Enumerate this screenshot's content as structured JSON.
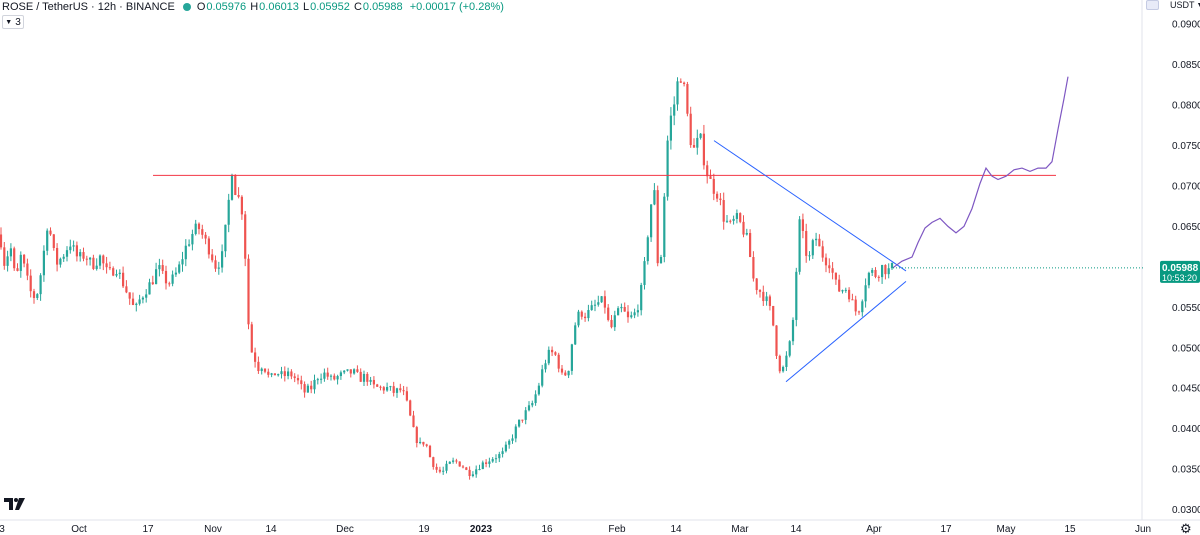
{
  "legend": {
    "symbol": "ROSE / TetherUS · 12h · BINANCE",
    "open_label": "O",
    "open": "0.05976",
    "high_label": "H",
    "high": "0.06013",
    "low_label": "L",
    "low": "0.05952",
    "close_label": "C",
    "close": "0.05988",
    "change": "+0.00017 (+0.28%)"
  },
  "indicators_button": {
    "count": "3"
  },
  "currency": "USDT",
  "price_badge": {
    "price": "0.05988",
    "countdown": "10:53:20",
    "color": "#089981"
  },
  "colors": {
    "up": "#26a69a",
    "down": "#ef5350",
    "resistance": "#f23645",
    "trend": "#2962ff",
    "projection": "#7e57c2",
    "axis_text": "#131722"
  },
  "chart_data": {
    "type": "candlestick",
    "symbol": "ROSE/USDT",
    "interval": "12h",
    "exchange": "BINANCE",
    "y_axis": {
      "ticks": [
        "0.09000",
        "0.08500",
        "0.08000",
        "0.07500",
        "0.07000",
        "0.06500",
        "0.06000",
        "0.05500",
        "0.05000",
        "0.04500",
        "0.04000",
        "0.03500",
        "0.03000"
      ],
      "ylim": [
        0.0297,
        0.0915
      ]
    },
    "x_axis": {
      "ticks": [
        "3",
        "Oct",
        "17",
        "Nov",
        "14",
        "Dec",
        "19",
        "2023",
        "16",
        "Feb",
        "14",
        "Mar",
        "14",
        "Apr",
        "17",
        "May",
        "15",
        "Jun"
      ],
      "bold": [
        "2023"
      ]
    },
    "series_path": [
      [
        0,
        0.064
      ],
      [
        5,
        0.06
      ],
      [
        10,
        0.063
      ],
      [
        16,
        0.0578
      ],
      [
        20,
        0.0615
      ],
      [
        24,
        0.06
      ],
      [
        30,
        0.057
      ],
      [
        36,
        0.056
      ],
      [
        42,
        0.06
      ],
      [
        48,
        0.066
      ],
      [
        53,
        0.062
      ],
      [
        57,
        0.0605
      ],
      [
        62,
        0.0612
      ],
      [
        70,
        0.063
      ],
      [
        78,
        0.061
      ],
      [
        85,
        0.0615
      ],
      [
        92,
        0.0602
      ],
      [
        100,
        0.0612
      ],
      [
        108,
        0.059
      ],
      [
        116,
        0.06
      ],
      [
        123,
        0.058
      ],
      [
        130,
        0.056
      ],
      [
        135,
        0.0545
      ],
      [
        140,
        0.056
      ],
      [
        146,
        0.0572
      ],
      [
        152,
        0.0582
      ],
      [
        158,
        0.06
      ],
      [
        164,
        0.0585
      ],
      [
        170,
        0.058
      ],
      [
        178,
        0.0595
      ],
      [
        185,
        0.0622
      ],
      [
        192,
        0.064
      ],
      [
        198,
        0.065
      ],
      [
        204,
        0.0635
      ],
      [
        210,
        0.062
      ],
      [
        216,
        0.06
      ],
      [
        222,
        0.0612
      ],
      [
        227,
        0.066
      ],
      [
        232,
        0.0722
      ],
      [
        236,
        0.069
      ],
      [
        241,
        0.068
      ],
      [
        244,
        0.065
      ],
      [
        247,
        0.056
      ],
      [
        250,
        0.05
      ],
      [
        254,
        0.049
      ],
      [
        258,
        0.0475
      ],
      [
        263,
        0.048
      ],
      [
        270,
        0.046
      ],
      [
        276,
        0.047
      ],
      [
        283,
        0.0465
      ],
      [
        290,
        0.0468
      ],
      [
        297,
        0.046
      ],
      [
        304,
        0.0445
      ],
      [
        311,
        0.045
      ],
      [
        318,
        0.0465
      ],
      [
        325,
        0.0468
      ],
      [
        332,
        0.046
      ],
      [
        339,
        0.0465
      ],
      [
        346,
        0.0468
      ],
      [
        353,
        0.047
      ],
      [
        360,
        0.0462
      ],
      [
        366,
        0.0465
      ],
      [
        372,
        0.0452
      ],
      [
        380,
        0.045
      ],
      [
        388,
        0.045
      ],
      [
        394,
        0.0445
      ],
      [
        400,
        0.0448
      ],
      [
        405,
        0.044
      ],
      [
        410,
        0.0415
      ],
      [
        415,
        0.039
      ],
      [
        420,
        0.038
      ],
      [
        425,
        0.0385
      ],
      [
        430,
        0.0365
      ],
      [
        436,
        0.035
      ],
      [
        442,
        0.0345
      ],
      [
        448,
        0.0355
      ],
      [
        455,
        0.036
      ],
      [
        462,
        0.0355
      ],
      [
        468,
        0.0345
      ],
      [
        474,
        0.0348
      ],
      [
        480,
        0.0355
      ],
      [
        487,
        0.036
      ],
      [
        494,
        0.0365
      ],
      [
        502,
        0.0368
      ],
      [
        508,
        0.038
      ],
      [
        514,
        0.0395
      ],
      [
        520,
        0.041
      ],
      [
        526,
        0.042
      ],
      [
        532,
        0.043
      ],
      [
        538,
        0.045
      ],
      [
        544,
        0.048
      ],
      [
        550,
        0.0495
      ],
      [
        556,
        0.049
      ],
      [
        562,
        0.0465
      ],
      [
        568,
        0.047
      ],
      [
        574,
        0.0525
      ],
      [
        580,
        0.0545
      ],
      [
        586,
        0.054
      ],
      [
        592,
        0.0548
      ],
      [
        598,
        0.0555
      ],
      [
        604,
        0.0558
      ],
      [
        610,
        0.052
      ],
      [
        616,
        0.054
      ],
      [
        622,
        0.0548
      ],
      [
        628,
        0.0535
      ],
      [
        634,
        0.054
      ],
      [
        640,
        0.056
      ],
      [
        645,
        0.0605
      ],
      [
        650,
        0.067
      ],
      [
        654,
        0.07
      ],
      [
        658,
        0.06
      ],
      [
        662,
        0.062
      ],
      [
        666,
        0.074
      ],
      [
        670,
        0.078
      ],
      [
        674,
        0.08
      ],
      [
        678,
        0.083
      ],
      [
        682,
        0.084
      ],
      [
        686,
        0.08
      ],
      [
        690,
        0.076
      ],
      [
        694,
        0.0745
      ],
      [
        700,
        0.076
      ],
      [
        706,
        0.072
      ],
      [
        712,
        0.07
      ],
      [
        718,
        0.069
      ],
      [
        724,
        0.066
      ],
      [
        730,
        0.065
      ],
      [
        736,
        0.066
      ],
      [
        742,
        0.065
      ],
      [
        748,
        0.063
      ],
      [
        754,
        0.058
      ],
      [
        760,
        0.057
      ],
      [
        766,
        0.056
      ],
      [
        772,
        0.054
      ],
      [
        778,
        0.048
      ],
      [
        782,
        0.047
      ],
      [
        787,
        0.049
      ],
      [
        792,
        0.0515
      ],
      [
        796,
        0.059
      ],
      [
        800,
        0.066
      ],
      [
        805,
        0.062
      ],
      [
        810,
        0.061
      ],
      [
        815,
        0.064
      ],
      [
        820,
        0.062
      ],
      [
        825,
        0.061
      ],
      [
        830,
        0.0605
      ],
      [
        835,
        0.058
      ],
      [
        840,
        0.057
      ],
      [
        845,
        0.0575
      ],
      [
        850,
        0.0565
      ],
      [
        855,
        0.0545
      ],
      [
        860,
        0.055
      ],
      [
        865,
        0.058
      ],
      [
        870,
        0.0595
      ],
      [
        876,
        0.059
      ],
      [
        882,
        0.06
      ],
      [
        888,
        0.0595
      ],
      [
        893,
        0.0599
      ]
    ],
    "resistance_line": {
      "x_from": 153,
      "x_to": 1056,
      "price": 0.0713
    },
    "trendlines": [
      {
        "name": "upper",
        "from": [
          714,
          0.0756
        ],
        "to": [
          906,
          0.0595
        ]
      },
      {
        "name": "lower",
        "from": [
          786,
          0.0458
        ],
        "to": [
          906,
          0.0582
        ]
      }
    ],
    "projection_path": [
      [
        893,
        0.0599
      ],
      [
        902,
        0.0607
      ],
      [
        912,
        0.0612
      ],
      [
        918,
        0.063
      ],
      [
        925,
        0.0648
      ],
      [
        932,
        0.0655
      ],
      [
        940,
        0.066
      ],
      [
        948,
        0.065
      ],
      [
        956,
        0.0642
      ],
      [
        964,
        0.065
      ],
      [
        972,
        0.0672
      ],
      [
        980,
        0.0703
      ],
      [
        986,
        0.0722
      ],
      [
        992,
        0.0712
      ],
      [
        998,
        0.0708
      ],
      [
        1006,
        0.0712
      ],
      [
        1014,
        0.072
      ],
      [
        1022,
        0.0722
      ],
      [
        1030,
        0.0718
      ],
      [
        1038,
        0.0722
      ],
      [
        1046,
        0.0722
      ],
      [
        1052,
        0.073
      ],
      [
        1058,
        0.077
      ],
      [
        1064,
        0.0808
      ],
      [
        1068,
        0.0835
      ]
    ]
  }
}
